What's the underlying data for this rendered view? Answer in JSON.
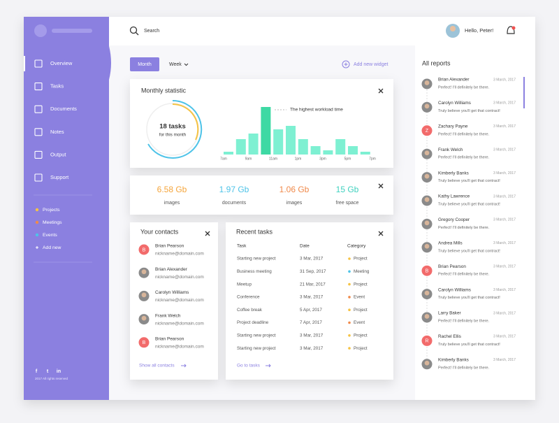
{
  "sidebar": {
    "menu": [
      "Overview",
      "Tasks",
      "Documents",
      "Notes",
      "Output",
      "Support"
    ],
    "tags": [
      {
        "label": "Projects",
        "color": "#f5c344"
      },
      {
        "label": "Meetings",
        "color": "#f08a4b"
      },
      {
        "label": "Events",
        "color": "#4ec3e8"
      }
    ],
    "add_tag": "Add new",
    "social": [
      "f",
      "t",
      "in"
    ],
    "copyright": "2017 All rights reserved"
  },
  "topbar": {
    "search": "Search",
    "greeting": "Hello, Peter!"
  },
  "toolbar": {
    "tabs": [
      "Month",
      "Week"
    ],
    "add_widget": "Add new widget"
  },
  "monthly_statistic": {
    "title": "Monthly statistic",
    "summary_value": "18 tasks",
    "summary_label": "for this month",
    "annotation": "The highest workload time",
    "hours": [
      "7am",
      "9am",
      "11am",
      "1pm",
      "3pm",
      "5pm",
      "7pm"
    ],
    "workload": [
      4,
      22,
      30,
      68,
      36,
      41,
      22,
      12,
      6,
      22,
      12,
      4
    ],
    "color": "#7ef0d2",
    "peak_color": "#3ed9a4"
  },
  "storage": [
    {
      "value": "6.58 Gb",
      "label": "images",
      "color": "#f5a53b"
    },
    {
      "value": "1.97 Gb",
      "label": "documents",
      "color": "#4ec3e8"
    },
    {
      "value": "1.06 Gb",
      "label": "images",
      "color": "#f08a4b"
    },
    {
      "value": "15 Gb",
      "label": "free space",
      "color": "#3fd1bf"
    }
  ],
  "contacts": {
    "title": "Your contacts",
    "items": [
      {
        "name": "Brian Pearson",
        "email": "nickname@domain.com",
        "initial": "B"
      },
      {
        "name": "Brian Alexander",
        "email": "nickname@domain.com"
      },
      {
        "name": "Carolyn Williams",
        "email": "nickname@domain.com"
      },
      {
        "name": "Frank Welch",
        "email": "nickname@domain.com"
      },
      {
        "name": "Brian Pearson",
        "email": "nickname@domain.com",
        "initial": "B"
      }
    ],
    "link": "Show all contacts"
  },
  "recent_tasks": {
    "title": "Recent tasks",
    "columns": [
      "Task",
      "Date",
      "Category"
    ],
    "rows": [
      {
        "task": "Starting new project",
        "date": "3 Mar, 2017",
        "category": "Project",
        "color": "#f5c344"
      },
      {
        "task": "Business meeting",
        "date": "31 Sep, 2017",
        "category": "Meeting",
        "color": "#4ec3e8"
      },
      {
        "task": "Meetup",
        "date": "21 Mar, 2017",
        "category": "Project",
        "color": "#f5c344"
      },
      {
        "task": "Conference",
        "date": "3 Mar, 2017",
        "category": "Event",
        "color": "#f08a4b"
      },
      {
        "task": "Coffee break",
        "date": "5 Apr, 2017",
        "category": "Project",
        "color": "#f5c344"
      },
      {
        "task": "Project deadline",
        "date": "7 Apr, 2017",
        "category": "Event",
        "color": "#f08a4b"
      },
      {
        "task": "Starting new project",
        "date": "3 Mar, 2017",
        "category": "Project",
        "color": "#f5c344"
      },
      {
        "task": "Starting new project",
        "date": "3 Mar, 2017",
        "category": "Project",
        "color": "#f5c344"
      }
    ],
    "link": "Go to tasks"
  },
  "reports": {
    "title": "All reports",
    "items": [
      {
        "name": "Brian Alexander",
        "date": "3 March, 2017",
        "message": "Perfect! I'll definitely be there."
      },
      {
        "name": "Carolyn Williams",
        "date": "3 March, 2017",
        "message": "Truly believe you'll get that contract!"
      },
      {
        "name": "Zachary Payne",
        "date": "3 March, 2017",
        "message": "Perfect! I'll definitely be there.",
        "initial": "Z"
      },
      {
        "name": "Frank Welch",
        "date": "3 March, 2017",
        "message": "Perfect! I'll definitely be there."
      },
      {
        "name": "Kimberly Banks",
        "date": "3 March, 2017",
        "message": "Truly believe you'll get that contract!"
      },
      {
        "name": "Kathy Lawrence",
        "date": "3 March, 2017",
        "message": "Truly believe you'll get that contract!"
      },
      {
        "name": "Gregory Cooper",
        "date": "3 March, 2017",
        "message": "Perfect! I'll definitely be there."
      },
      {
        "name": "Andrea Mills",
        "date": "3 March, 2017",
        "message": "Truly believe you'll get that contract!"
      },
      {
        "name": "Brian Pearson",
        "date": "3 March, 2017",
        "message": "Perfect! I'll definitely be there.",
        "initial": "B"
      },
      {
        "name": "Carolyn Williams",
        "date": "3 March, 2017",
        "message": "Truly believe you'll get that contract!"
      },
      {
        "name": "Larry Baker",
        "date": "3 March, 2017",
        "message": "Perfect! I'll definitely be there."
      },
      {
        "name": "Rachel Ellis",
        "date": "3 March, 2017",
        "message": "Truly believe you'll get that contract!",
        "initial": "R"
      },
      {
        "name": "Kimberly Banks",
        "date": "3 March, 2017",
        "message": "Perfect! I'll definitely be there."
      }
    ]
  }
}
